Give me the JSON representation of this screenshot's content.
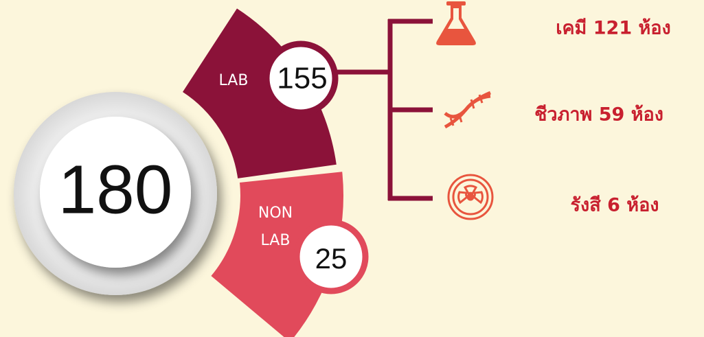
{
  "total": 180,
  "groups": [
    {
      "label_lines": [
        "LAB"
      ],
      "count": 155
    },
    {
      "label_lines": [
        "NON",
        "LAB"
      ],
      "count": 25
    }
  ],
  "branches": [
    {
      "label": "เคมี 121 ห้อง"
    },
    {
      "label": "ชีวภาพ 59 ห้อง"
    },
    {
      "label": "รังสี 6 ห้อง"
    }
  ]
}
